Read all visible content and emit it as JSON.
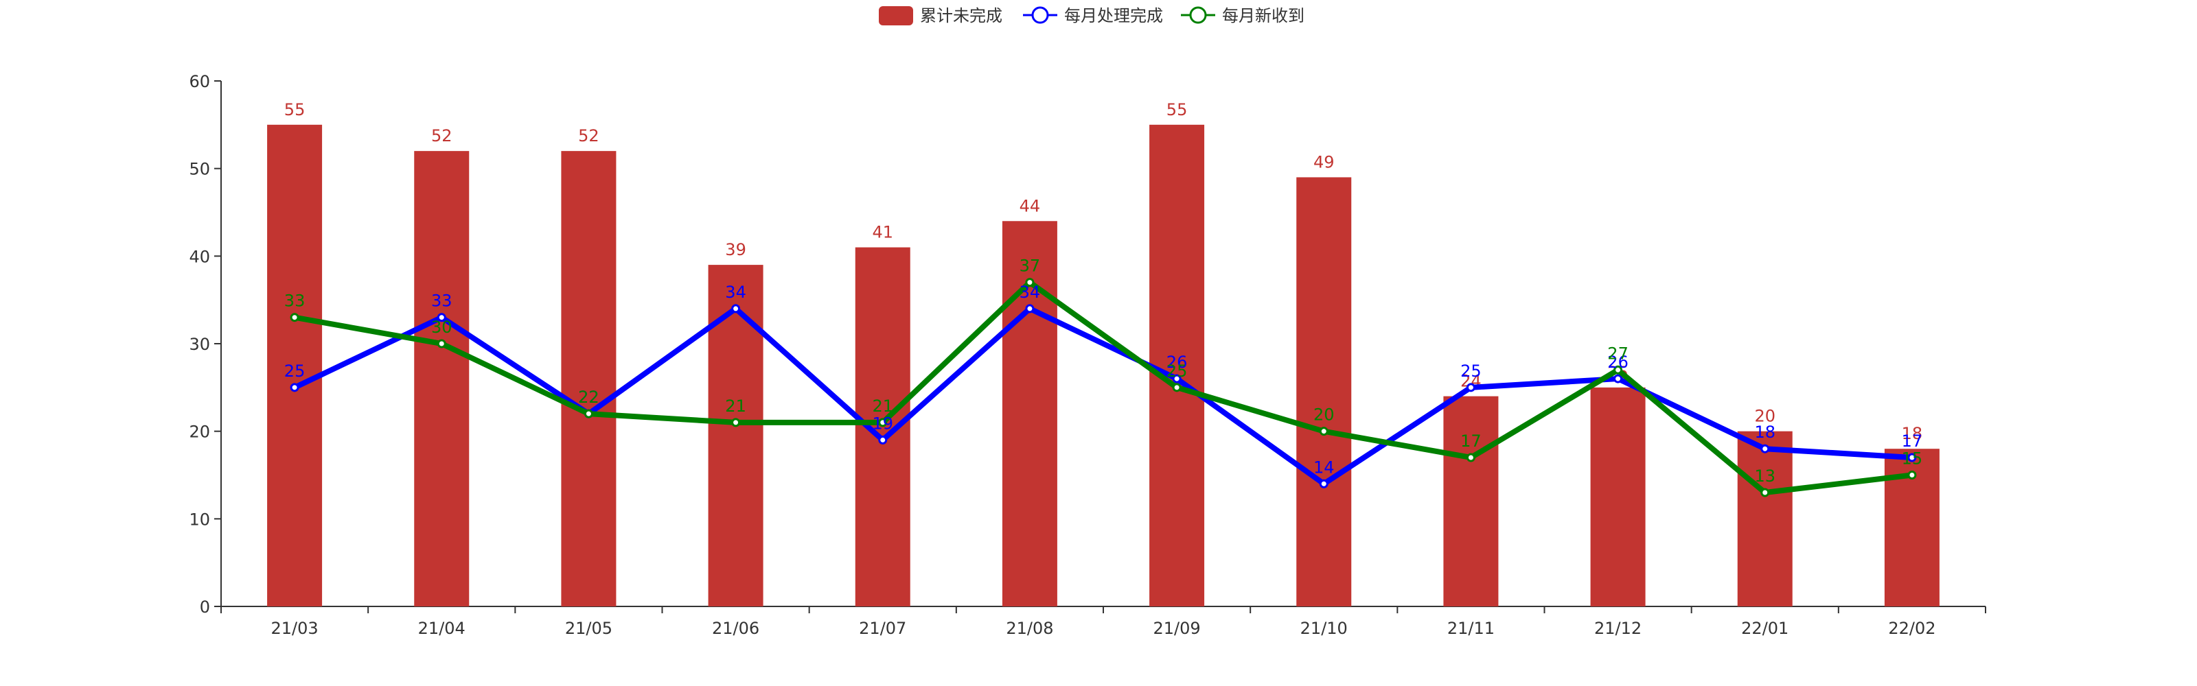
{
  "chart_data": {
    "type": "bar",
    "categories": [
      "21/03",
      "21/04",
      "21/05",
      "21/06",
      "21/07",
      "21/08",
      "21/09",
      "21/10",
      "21/11",
      "21/12",
      "22/01",
      "22/02"
    ],
    "ylim": [
      0,
      60
    ],
    "yticks": [
      0,
      10,
      20,
      30,
      40,
      50,
      60
    ],
    "legend_position": "top-center",
    "grid": false,
    "series": [
      {
        "name": "累计未完成",
        "type": "bar",
        "color": "#c23531",
        "values": [
          55,
          52,
          52,
          39,
          41,
          44,
          55,
          49,
          24,
          25,
          20,
          18
        ]
      },
      {
        "name": "每月处理完成",
        "type": "line",
        "color": "#0000ff",
        "values": [
          25,
          33,
          22,
          34,
          19,
          34,
          26,
          14,
          25,
          26,
          18,
          17
        ]
      },
      {
        "name": "每月新收到",
        "type": "line",
        "color": "#008000",
        "values": [
          33,
          30,
          22,
          21,
          21,
          37,
          25,
          20,
          17,
          27,
          13,
          15
        ]
      }
    ]
  }
}
